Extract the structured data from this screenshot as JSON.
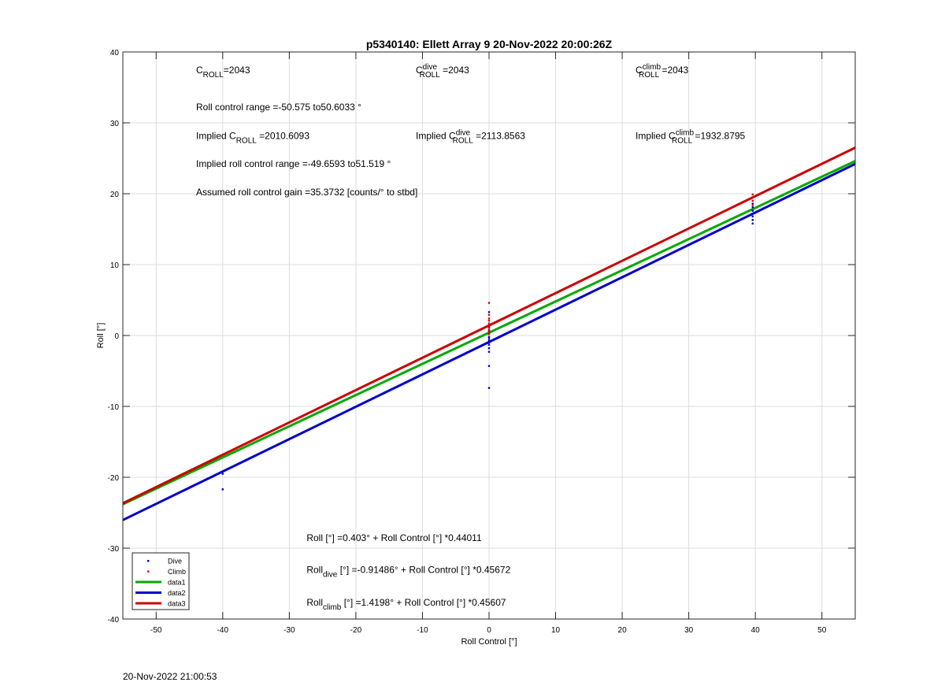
{
  "footer_timestamp": "20-Nov-2022 21:00:53",
  "chart_data": {
    "type": "scatter",
    "title": "p5340140: Ellett Array 9 20-Nov-2022 20:00:26Z",
    "xlabel": "Roll Control [°]",
    "ylabel": "Roll [°]",
    "xlim": [
      -55,
      55
    ],
    "ylim": [
      -40,
      40
    ],
    "xticks": [
      -50,
      -40,
      -30,
      -20,
      -10,
      0,
      10,
      20,
      30,
      40,
      50
    ],
    "yticks": [
      -40,
      -30,
      -20,
      -10,
      0,
      10,
      20,
      30,
      40
    ],
    "grid": true,
    "legend_location": "bottom-left",
    "series": [
      {
        "name": "Dive",
        "kind": "points",
        "color": "#0000cc",
        "points": [
          [
            -40,
            -19.5
          ],
          [
            -40,
            -21.7
          ],
          [
            0,
            -7.4
          ],
          [
            0,
            -4.3
          ],
          [
            0,
            -2.3
          ],
          [
            0,
            -1.8
          ],
          [
            0,
            -1.3
          ],
          [
            0,
            -1.0
          ],
          [
            0,
            -0.7
          ],
          [
            0,
            -0.4
          ],
          [
            0,
            -0.2
          ],
          [
            0,
            0.3
          ],
          [
            0,
            0.7
          ],
          [
            0,
            1.2
          ],
          [
            0,
            3.3
          ],
          [
            39.6,
            15.8
          ],
          [
            39.6,
            16.3
          ],
          [
            39.6,
            16.8
          ],
          [
            39.6,
            17.2
          ],
          [
            39.6,
            17.6
          ],
          [
            39.6,
            18.1
          ],
          [
            39.6,
            18.6
          ]
        ]
      },
      {
        "name": "Climb",
        "kind": "points",
        "color": "#dd0000",
        "points": [
          [
            0,
            4.6
          ],
          [
            0,
            2.9
          ],
          [
            0,
            2.4
          ],
          [
            0,
            2.1
          ],
          [
            0,
            1.7
          ],
          [
            0,
            1.4
          ],
          [
            0,
            1.1
          ],
          [
            0,
            0.8
          ],
          [
            0,
            0.5
          ],
          [
            0,
            0.2
          ],
          [
            39.6,
            18.4
          ],
          [
            39.6,
            19.0
          ],
          [
            39.6,
            19.5
          ],
          [
            39.6,
            19.9
          ]
        ]
      },
      {
        "name": "data1",
        "kind": "line",
        "color": "#00aa00",
        "intercept": 0.403,
        "slope": 0.44011
      },
      {
        "name": "data2",
        "kind": "line",
        "color": "#0000cc",
        "intercept": -0.91486,
        "slope": 0.45672
      },
      {
        "name": "data3",
        "kind": "line",
        "color": "#cc0000",
        "intercept": 1.4198,
        "slope": 0.45607
      }
    ],
    "annotations": [
      {
        "id": "c_roll",
        "at": [
          -44,
          37
        ],
        "parts": [
          [
            "C",
            ""
          ],
          [
            "ROLL",
            "sub"
          ],
          [
            "=2043",
            ""
          ]
        ]
      },
      {
        "id": "c_roll_dive",
        "at": [
          -11,
          37
        ],
        "parts": [
          [
            "C",
            ""
          ],
          [
            "ROLL",
            "subsup",
            "dive"
          ],
          [
            " =2043",
            ""
          ]
        ]
      },
      {
        "id": "c_roll_climb",
        "at": [
          22,
          37
        ],
        "parts": [
          [
            "C",
            ""
          ],
          [
            "ROLL",
            "subsup",
            "climb"
          ],
          [
            " =2043",
            ""
          ]
        ]
      },
      {
        "id": "roll_control_range",
        "at": [
          -44,
          31.8
        ],
        "parts": [
          [
            "Roll control range =-50.575 to50.6033 °",
            ""
          ]
        ]
      },
      {
        "id": "implied_c_roll",
        "at": [
          -44,
          27.7
        ],
        "parts": [
          [
            "Implied C",
            ""
          ],
          [
            "ROLL",
            "sub"
          ],
          [
            " =2010.6093",
            ""
          ]
        ]
      },
      {
        "id": "implied_c_roll_dive",
        "at": [
          -11,
          27.7
        ],
        "parts": [
          [
            "Implied C",
            ""
          ],
          [
            "ROLL",
            "subsup",
            "dive"
          ],
          [
            " =2113.8563",
            ""
          ]
        ]
      },
      {
        "id": "implied_c_roll_climb",
        "at": [
          22,
          27.7
        ],
        "parts": [
          [
            "Implied C",
            ""
          ],
          [
            "ROLL",
            "subsup",
            "climb"
          ],
          [
            " =1932.8795",
            ""
          ]
        ]
      },
      {
        "id": "implied_range",
        "at": [
          -44,
          23.8
        ],
        "parts": [
          [
            "Implied roll control range =-49.6593 to51.519 °",
            ""
          ]
        ]
      },
      {
        "id": "gain",
        "at": [
          -44,
          19.8
        ],
        "parts": [
          [
            "Assumed roll control gain =35.3732 [counts/° to stbd]",
            ""
          ]
        ]
      },
      {
        "id": "fit_all",
        "at": [
          -27.4,
          -29
        ],
        "parts": [
          [
            "Roll [°] =0.403° + Roll Control [°] *0.44011",
            ""
          ]
        ]
      },
      {
        "id": "fit_dive",
        "at": [
          -27.4,
          -33.5
        ],
        "parts": [
          [
            "Roll",
            ""
          ],
          [
            "dive",
            "sub"
          ],
          [
            " [°] =-0.91486° + Roll Control [°] *0.45672",
            ""
          ]
        ]
      },
      {
        "id": "fit_climb",
        "at": [
          -27.4,
          -38.1
        ],
        "parts": [
          [
            "Roll",
            ""
          ],
          [
            "climb",
            "sub"
          ],
          [
            " [°] =1.4198° + Roll Control [°] *0.45607",
            ""
          ]
        ]
      }
    ]
  }
}
